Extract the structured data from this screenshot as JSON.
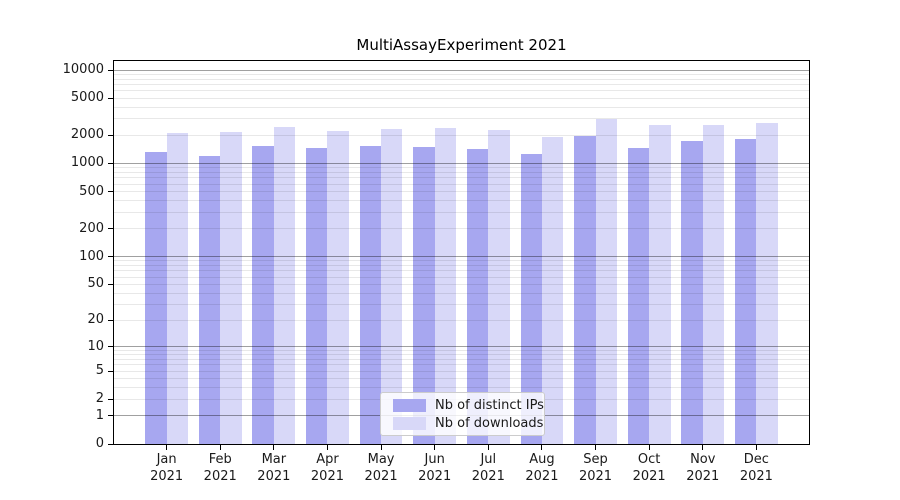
{
  "title": "MultiAssayExperiment 2021",
  "chart_data": {
    "type": "bar",
    "title": "MultiAssayExperiment 2021",
    "categories": [
      "Jan",
      "Feb",
      "Mar",
      "Apr",
      "May",
      "Jun",
      "Jul",
      "Aug",
      "Sep",
      "Oct",
      "Nov",
      "Dec"
    ],
    "year_label": "2021",
    "series": [
      {
        "name": "Nb of distinct IPs",
        "color": "#a7a7f0",
        "values": [
          1337,
          1202,
          1539,
          1476,
          1550,
          1490,
          1445,
          1250,
          1954,
          1460,
          1755,
          1815
        ]
      },
      {
        "name": "Nb of downloads",
        "color": "#d8d8f8",
        "values": [
          2135,
          2188,
          2475,
          2210,
          2339,
          2415,
          2290,
          1900,
          2969,
          2600,
          2600,
          2740
        ]
      }
    ],
    "y_ticks": [
      0,
      1,
      2,
      5,
      10,
      20,
      50,
      100,
      200,
      500,
      1000,
      2000,
      5000,
      10000
    ],
    "y_scale": "log1p",
    "ylim": [
      0,
      10000
    ],
    "grid": true,
    "legend_position": "lower center"
  },
  "colors": {
    "background": "#ffffff",
    "bar_ips": "#a7a7f0",
    "bar_downloads": "#d8d8f8",
    "grid_minor": "#e8e8e8",
    "grid_major": "#a0a0a0",
    "axis": "#000000",
    "text": "#1a1a1a"
  }
}
